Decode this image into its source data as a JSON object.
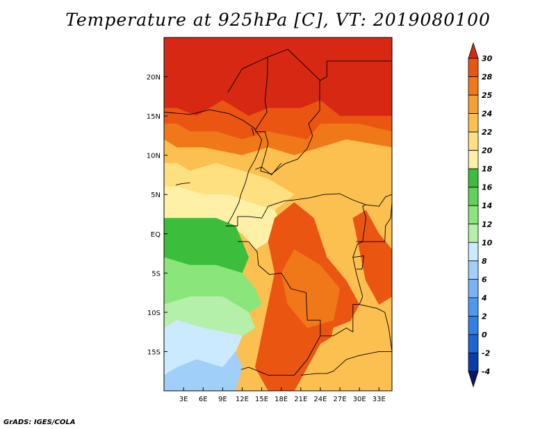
{
  "chart_data": {
    "type": "heatmap",
    "title": "Temperature at 925hPa [C], VT: 2019080100",
    "xlabel": "",
    "ylabel": "",
    "xlim": [
      0,
      35
    ],
    "ylim": [
      -20,
      25
    ],
    "x_ticks": [
      {
        "value": 3,
        "label": "3E"
      },
      {
        "value": 6,
        "label": "6E"
      },
      {
        "value": 9,
        "label": "9E"
      },
      {
        "value": 12,
        "label": "12E"
      },
      {
        "value": 15,
        "label": "15E"
      },
      {
        "value": 18,
        "label": "18E"
      },
      {
        "value": 21,
        "label": "21E"
      },
      {
        "value": 24,
        "label": "24E"
      },
      {
        "value": 27,
        "label": "27E"
      },
      {
        "value": 30,
        "label": "30E"
      },
      {
        "value": 33,
        "label": "33E"
      }
    ],
    "y_ticks": [
      {
        "value": 20,
        "label": "20N"
      },
      {
        "value": 15,
        "label": "15N"
      },
      {
        "value": 10,
        "label": "10N"
      },
      {
        "value": 5,
        "label": "5N"
      },
      {
        "value": 0,
        "label": "EQ"
      },
      {
        "value": -5,
        "label": "5S"
      },
      {
        "value": -10,
        "label": "10S"
      },
      {
        "value": -15,
        "label": "15S"
      }
    ],
    "colorbar": {
      "levels": [
        "-4",
        "-2",
        "0",
        "2",
        "4",
        "6",
        "8",
        "10",
        "12",
        "14",
        "16",
        "18",
        "20",
        "22",
        "24",
        "25",
        "28",
        "30"
      ],
      "colors": [
        "#0a1666",
        "#0a3caa",
        "#1e64d2",
        "#3280e6",
        "#4e98f0",
        "#78b4f5",
        "#a0d0fa",
        "#cceaff",
        "#b4f0aa",
        "#8ae67a",
        "#5ed25a",
        "#3cbe3c",
        "#fff0a8",
        "#ffe080",
        "#fcc050",
        "#f5a032",
        "#f07819",
        "#eb5512",
        "#d72814"
      ]
    },
    "regions": [
      {
        "level": 30,
        "color": "#d72814",
        "polygon": [
          [
            0,
            25
          ],
          [
            35,
            25
          ],
          [
            35,
            15
          ],
          [
            27,
            15
          ],
          [
            24,
            17
          ],
          [
            21,
            16
          ],
          [
            16,
            16
          ],
          [
            13,
            15
          ],
          [
            9,
            17
          ],
          [
            5,
            15
          ],
          [
            2,
            16
          ],
          [
            0,
            16
          ]
        ]
      },
      {
        "level": 28,
        "color": "#eb5512",
        "polygon": [
          [
            0,
            16
          ],
          [
            2,
            16
          ],
          [
            5,
            15
          ],
          [
            9,
            17
          ],
          [
            13,
            15
          ],
          [
            16,
            16
          ],
          [
            21,
            16
          ],
          [
            24,
            17
          ],
          [
            27,
            15
          ],
          [
            35,
            15
          ],
          [
            35,
            13
          ],
          [
            30,
            14
          ],
          [
            24,
            14
          ],
          [
            22,
            12
          ],
          [
            16,
            13
          ],
          [
            12,
            12
          ],
          [
            8,
            13
          ],
          [
            4,
            13
          ],
          [
            2,
            14
          ],
          [
            0,
            14
          ]
        ]
      },
      {
        "level": 25,
        "color": "#f07819",
        "polygon": [
          [
            0,
            14
          ],
          [
            2,
            14
          ],
          [
            4,
            13
          ],
          [
            8,
            13
          ],
          [
            12,
            12
          ],
          [
            16,
            13
          ],
          [
            22,
            12
          ],
          [
            24,
            14
          ],
          [
            30,
            14
          ],
          [
            35,
            13
          ],
          [
            35,
            11
          ],
          [
            28,
            12
          ],
          [
            24,
            11
          ],
          [
            20,
            10
          ],
          [
            16,
            11
          ],
          [
            12,
            10
          ],
          [
            6,
            11
          ],
          [
            2,
            11
          ],
          [
            0,
            12
          ]
        ]
      },
      {
        "level": 24,
        "color": "#fcc050",
        "polygon": [
          [
            0,
            12
          ],
          [
            2,
            11
          ],
          [
            6,
            11
          ],
          [
            12,
            10
          ],
          [
            16,
            11
          ],
          [
            20,
            10
          ],
          [
            24,
            11
          ],
          [
            28,
            12
          ],
          [
            35,
            11
          ],
          [
            35,
            -1
          ],
          [
            28,
            0
          ],
          [
            24,
            3
          ],
          [
            20,
            5
          ],
          [
            16,
            7
          ],
          [
            12,
            8
          ],
          [
            8,
            9
          ],
          [
            4,
            8
          ],
          [
            2,
            9
          ],
          [
            0,
            9
          ]
        ]
      },
      {
        "level": 22,
        "color": "#ffe080",
        "polygon": [
          [
            0,
            9
          ],
          [
            2,
            9
          ],
          [
            4,
            8
          ],
          [
            8,
            9
          ],
          [
            12,
            8
          ],
          [
            16,
            7
          ],
          [
            20,
            5
          ],
          [
            17,
            3
          ],
          [
            13,
            4
          ],
          [
            10,
            5
          ],
          [
            6,
            5
          ],
          [
            2,
            6
          ],
          [
            0,
            6
          ]
        ]
      },
      {
        "level": 20,
        "color": "#fff0a8",
        "polygon": [
          [
            0,
            6
          ],
          [
            2,
            6
          ],
          [
            6,
            5
          ],
          [
            10,
            5
          ],
          [
            13,
            4
          ],
          [
            17,
            3
          ],
          [
            18,
            1
          ],
          [
            16,
            -1
          ],
          [
            14,
            -2
          ],
          [
            12,
            0
          ],
          [
            8,
            2
          ],
          [
            4,
            2
          ],
          [
            0,
            2
          ]
        ]
      },
      {
        "level": 16,
        "color": "#3cbe3c",
        "polygon": [
          [
            0,
            2
          ],
          [
            4,
            2
          ],
          [
            8,
            2
          ],
          [
            11,
            1
          ],
          [
            12,
            -1
          ],
          [
            13,
            -3
          ],
          [
            12,
            -5
          ],
          [
            8,
            -4
          ],
          [
            4,
            -4
          ],
          [
            0,
            -3
          ]
        ]
      },
      {
        "level": 14,
        "color": "#8ae67a",
        "polygon": [
          [
            0,
            -3
          ],
          [
            4,
            -4
          ],
          [
            8,
            -4
          ],
          [
            12,
            -5
          ],
          [
            14,
            -7
          ],
          [
            15,
            -9
          ],
          [
            13,
            -10
          ],
          [
            9,
            -8
          ],
          [
            4,
            -8
          ],
          [
            0,
            -9
          ]
        ]
      },
      {
        "level": 12,
        "color": "#b4f0aa",
        "polygon": [
          [
            0,
            -9
          ],
          [
            4,
            -8
          ],
          [
            9,
            -8
          ],
          [
            13,
            -10
          ],
          [
            14,
            -12
          ],
          [
            12,
            -13
          ],
          [
            6,
            -12
          ],
          [
            2,
            -11
          ],
          [
            0,
            -12
          ]
        ]
      },
      {
        "level": 10,
        "color": "#cceaff",
        "polygon": [
          [
            0,
            -12
          ],
          [
            2,
            -11
          ],
          [
            6,
            -12
          ],
          [
            12,
            -13
          ],
          [
            11,
            -15
          ],
          [
            9,
            -17
          ],
          [
            5,
            -16
          ],
          [
            2,
            -17
          ],
          [
            0,
            -18
          ]
        ]
      },
      {
        "level": 8,
        "color": "#a0d0fa",
        "polygon": [
          [
            0,
            -18
          ],
          [
            2,
            -17
          ],
          [
            5,
            -16
          ],
          [
            9,
            -17
          ],
          [
            11,
            -15
          ],
          [
            12,
            -17
          ],
          [
            11,
            -20
          ],
          [
            0,
            -20
          ]
        ]
      },
      {
        "level": 28,
        "color": "#eb5512",
        "polygon": [
          [
            17,
            2
          ],
          [
            20,
            4
          ],
          [
            23,
            2
          ],
          [
            25,
            -3
          ],
          [
            28,
            -6
          ],
          [
            30,
            -9
          ],
          [
            28,
            -12
          ],
          [
            24,
            -14
          ],
          [
            22,
            -17
          ],
          [
            20,
            -20
          ],
          [
            16,
            -20
          ],
          [
            14,
            -17
          ],
          [
            15,
            -13
          ],
          [
            16,
            -9
          ],
          [
            17,
            -5
          ],
          [
            16,
            -1
          ]
        ]
      },
      {
        "level": 25,
        "color": "#f07819",
        "polygon": [
          [
            20,
            -2
          ],
          [
            24,
            -4
          ],
          [
            27,
            -7
          ],
          [
            26,
            -11
          ],
          [
            22,
            -12
          ],
          [
            19,
            -9
          ],
          [
            18,
            -5
          ]
        ]
      },
      {
        "level": 24,
        "color": "#fcc050",
        "polygon": [
          [
            26,
            -12
          ],
          [
            29,
            -11
          ],
          [
            33,
            -13
          ],
          [
            35,
            -14
          ],
          [
            35,
            -18
          ],
          [
            31,
            -16
          ],
          [
            28,
            -17
          ],
          [
            25,
            -16
          ]
        ]
      },
      {
        "level": 28,
        "color": "#eb5512",
        "polygon": [
          [
            29,
            2
          ],
          [
            31,
            3
          ],
          [
            33,
            0
          ],
          [
            35,
            -2
          ],
          [
            35,
            -8
          ],
          [
            33,
            -9
          ],
          [
            31,
            -6
          ],
          [
            30,
            -2
          ]
        ]
      }
    ],
    "borders": [
      [
        [
          0,
          15.5
        ],
        [
          4,
          15.2
        ],
        [
          7,
          15.8
        ],
        [
          10,
          15.3
        ],
        [
          12,
          14.5
        ],
        [
          13.8,
          13.5
        ],
        [
          15,
          12
        ],
        [
          14.5,
          10.5
        ],
        [
          14,
          9.5
        ],
        [
          13,
          8
        ],
        [
          12.5,
          6.5
        ],
        [
          11.8,
          5
        ],
        [
          11.5,
          4
        ],
        [
          10.5,
          2.3
        ],
        [
          9.8,
          1.3
        ]
      ],
      [
        [
          9.5,
          1
        ],
        [
          11.3,
          1
        ],
        [
          11.3,
          2.2
        ],
        [
          13,
          2.2
        ],
        [
          15,
          2
        ],
        [
          16,
          3.5
        ],
        [
          18.5,
          4.2
        ],
        [
          20,
          4.3
        ],
        [
          22.5,
          4.6
        ],
        [
          24.5,
          5
        ],
        [
          27,
          5.1
        ],
        [
          29,
          4.3
        ],
        [
          31,
          3.7
        ],
        [
          33,
          3.5
        ],
        [
          34,
          4.7
        ],
        [
          35,
          5
        ]
      ],
      [
        [
          14,
          13
        ],
        [
          15.5,
          13
        ],
        [
          16,
          11.5
        ],
        [
          15.5,
          10
        ],
        [
          14.8,
          8
        ],
        [
          16.5,
          7.6
        ],
        [
          18.5,
          8.9
        ],
        [
          20.5,
          9.5
        ],
        [
          22,
          10.9
        ],
        [
          22.8,
          12.5
        ],
        [
          22.2,
          14
        ],
        [
          23.9,
          15.7
        ],
        [
          23.9,
          19.5
        ],
        [
          25,
          20
        ],
        [
          25,
          22
        ],
        [
          35,
          22
        ]
      ],
      [
        [
          15.9,
          22.5
        ],
        [
          15.9,
          20.5
        ],
        [
          15.5,
          17
        ],
        [
          15.8,
          15.5
        ],
        [
          14,
          13.2
        ]
      ],
      [
        [
          9.8,
          18
        ],
        [
          12,
          21
        ],
        [
          15.9,
          22.5
        ],
        [
          19,
          23.5
        ],
        [
          24,
          19.5
        ]
      ],
      [
        [
          11.3,
          -1
        ],
        [
          13,
          -1
        ],
        [
          14.3,
          -2.3
        ],
        [
          14.5,
          -4
        ],
        [
          16.2,
          -5.2
        ],
        [
          18,
          -5
        ],
        [
          19.5,
          -7
        ],
        [
          21.8,
          -7.5
        ],
        [
          22,
          -11
        ],
        [
          24,
          -11
        ],
        [
          24,
          -13
        ],
        [
          22,
          -16
        ],
        [
          20,
          -18
        ],
        [
          16,
          -18
        ],
        [
          13,
          -17
        ],
        [
          11.8,
          -17.3
        ]
      ],
      [
        [
          24,
          -13
        ],
        [
          26,
          -13
        ],
        [
          28,
          -12
        ],
        [
          29,
          -12.5
        ],
        [
          29,
          -9
        ],
        [
          30,
          -9
        ],
        [
          30.5,
          -8
        ],
        [
          29.5,
          -5
        ],
        [
          29,
          -3
        ],
        [
          29.7,
          -1.3
        ],
        [
          30.5,
          -1
        ],
        [
          31,
          2
        ],
        [
          30.5,
          3.5
        ],
        [
          31,
          3.7
        ]
      ],
      [
        [
          29.5,
          -1
        ],
        [
          33.9,
          -1
        ],
        [
          34,
          1
        ],
        [
          34.8,
          2
        ],
        [
          35,
          4
        ]
      ],
      [
        [
          29,
          -3
        ],
        [
          30.7,
          -2.8
        ],
        [
          30.4,
          -4.5
        ],
        [
          29.5,
          -4.5
        ]
      ],
      [
        [
          30,
          -9
        ],
        [
          32.7,
          -9.5
        ],
        [
          33.9,
          -10
        ],
        [
          34.5,
          -12
        ],
        [
          35,
          -15
        ]
      ],
      [
        [
          21,
          -18
        ],
        [
          23.5,
          -17.8
        ],
        [
          25,
          -17.8
        ],
        [
          26,
          -17.5
        ],
        [
          28,
          -16
        ],
        [
          30,
          -15.5
        ],
        [
          33,
          -15
        ],
        [
          35,
          -15
        ]
      ],
      [
        [
          14,
          8.2
        ],
        [
          15,
          8.5
        ],
        [
          16.5,
          7.5
        ],
        [
          18,
          9
        ]
      ],
      [
        [
          1.8,
          6.2
        ],
        [
          2.8,
          6.4
        ],
        [
          4,
          6.5
        ]
      ],
      [
        [
          13.5,
          13.5
        ],
        [
          13.8,
          12.5
        ]
      ]
    ]
  },
  "footer": "GrADS: IGES/COLA"
}
